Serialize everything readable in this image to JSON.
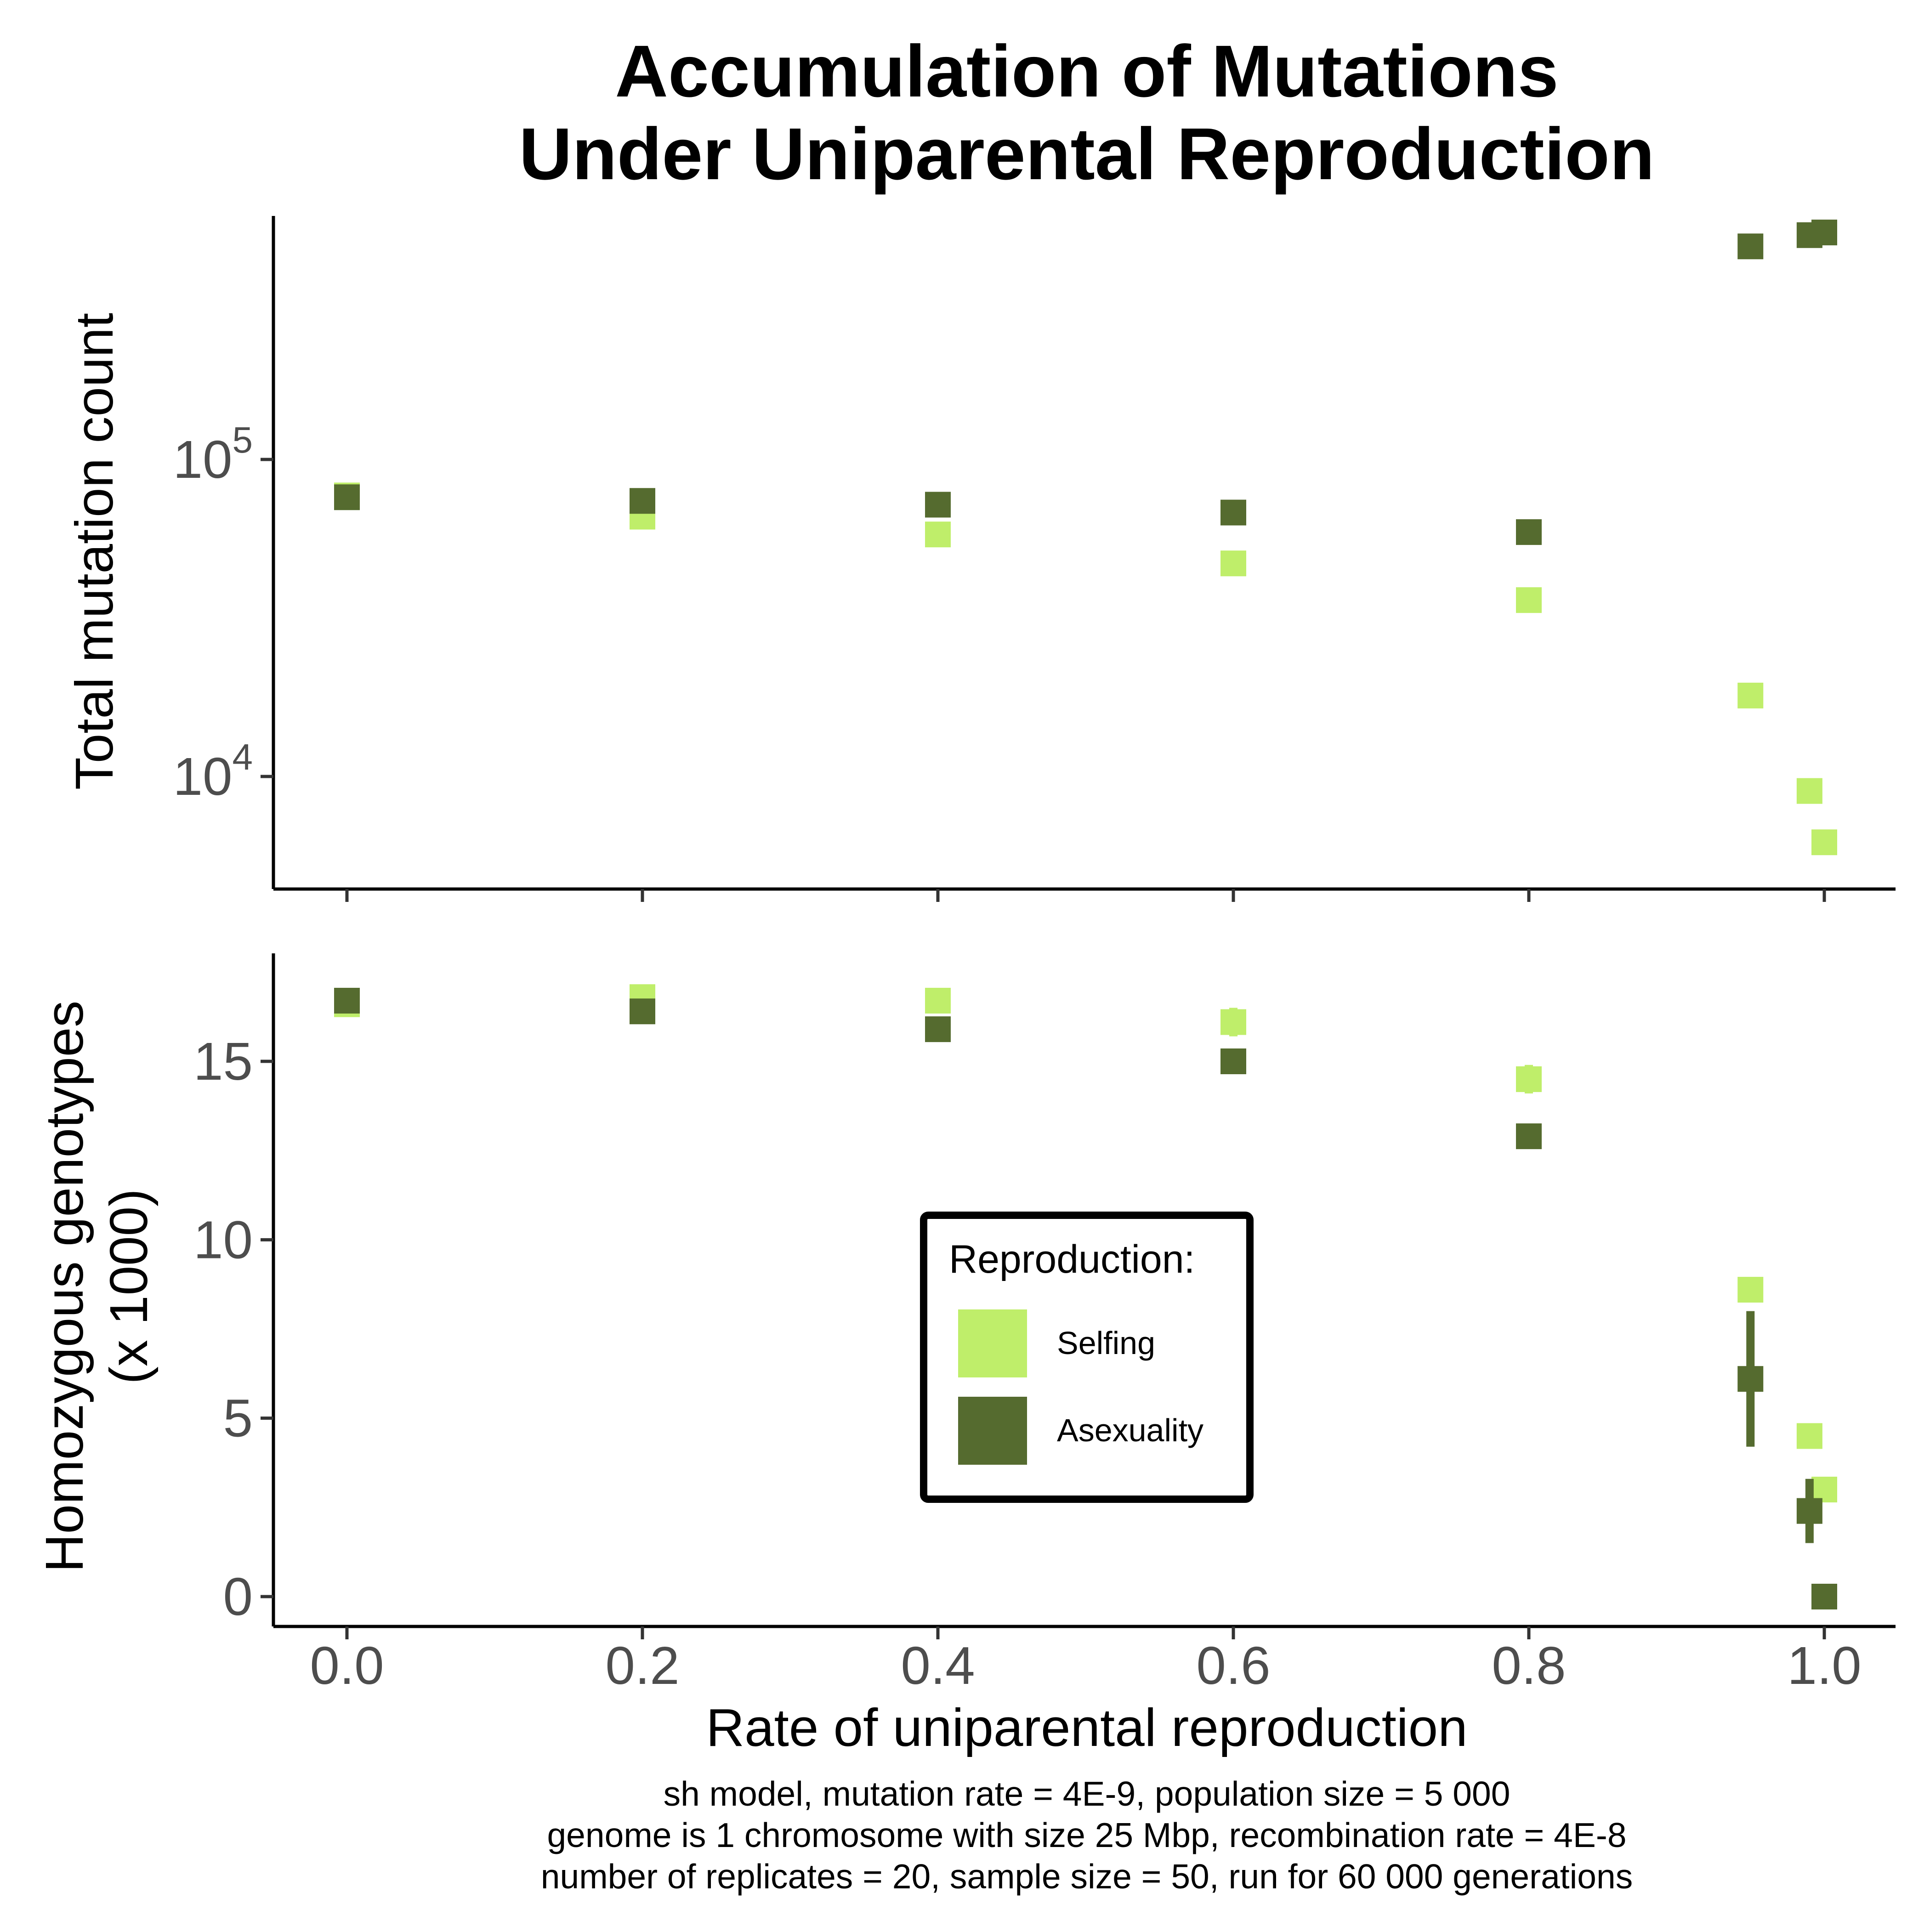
{
  "chart_data": {
    "type": "scatter",
    "title_lines": [
      "Accumulation of Mutations",
      "Under Uniparental Reproduction"
    ],
    "xlabel": "Rate of uniparental reproduction",
    "x_ticks": [
      "0.0",
      "0.2",
      "0.4",
      "0.6",
      "0.8",
      "1.0"
    ],
    "caption_lines": [
      "sh model, mutation rate = 4E-9, population size = 5 000",
      "genome is 1 chromosome with size 25 Mbp, recombination rate = 4E-8",
      "number of replicates = 20, sample size = 50, run for 60 000 generations"
    ],
    "legend": {
      "title": "Reproduction:",
      "items": [
        {
          "label": "Selfing",
          "color": "#bfee6a"
        },
        {
          "label": "Asexuality",
          "color": "#556b2f"
        }
      ]
    },
    "panels": [
      {
        "ylabel_lines": [
          "Total mutation count"
        ],
        "yscale": "log10",
        "ylim": [
          5000,
          600000
        ],
        "y_ticks": [
          {
            "value": 100000,
            "base": "10",
            "exp": "5"
          },
          {
            "value": 10000,
            "base": "10",
            "exp": "4"
          }
        ],
        "series": [
          {
            "name": "Selfing",
            "color": "#bfee6a",
            "points": [
              {
                "x": 0.0,
                "y": 77000
              },
              {
                "x": 0.2,
                "y": 66000
              },
              {
                "x": 0.4,
                "y": 58000
              },
              {
                "x": 0.6,
                "y": 47000
              },
              {
                "x": 0.8,
                "y": 36000
              },
              {
                "x": 0.95,
                "y": 18000
              },
              {
                "x": 0.99,
                "y": 9000
              },
              {
                "x": 1.0,
                "y": 6200,
                "err": 400
              }
            ]
          },
          {
            "name": "Asexuality",
            "color": "#556b2f",
            "points": [
              {
                "x": 0.0,
                "y": 76000
              },
              {
                "x": 0.2,
                "y": 74000
              },
              {
                "x": 0.4,
                "y": 72000
              },
              {
                "x": 0.6,
                "y": 68000
              },
              {
                "x": 0.8,
                "y": 59000
              },
              {
                "x": 0.95,
                "y": 470000
              },
              {
                "x": 0.99,
                "y": 510000
              },
              {
                "x": 1.0,
                "y": 520000
              }
            ]
          }
        ]
      },
      {
        "ylabel_lines": [
          "Homozygous genotypes",
          "(x 1000)"
        ],
        "yscale": "linear",
        "ylim": [
          -0.8,
          18
        ],
        "y_ticks": [
          {
            "value": 0,
            "label": "0"
          },
          {
            "value": 5,
            "label": "5"
          },
          {
            "value": 10,
            "label": "10"
          },
          {
            "value": 15,
            "label": "15"
          }
        ],
        "series": [
          {
            "name": "Selfing",
            "color": "#bfee6a",
            "points": [
              {
                "x": 0.0,
                "y": 16.6
              },
              {
                "x": 0.2,
                "y": 16.8,
                "err": 0.2
              },
              {
                "x": 0.4,
                "y": 16.7,
                "err": 0.3
              },
              {
                "x": 0.6,
                "y": 16.1,
                "err": 0.4
              },
              {
                "x": 0.8,
                "y": 14.5,
                "err": 0.4
              },
              {
                "x": 0.95,
                "y": 8.6
              },
              {
                "x": 0.99,
                "y": 4.5
              },
              {
                "x": 1.0,
                "y": 3.0
              }
            ]
          },
          {
            "name": "Asexuality",
            "color": "#556b2f",
            "points": [
              {
                "x": 0.0,
                "y": 16.7
              },
              {
                "x": 0.2,
                "y": 16.4
              },
              {
                "x": 0.4,
                "y": 15.9
              },
              {
                "x": 0.6,
                "y": 15.0
              },
              {
                "x": 0.8,
                "y": 12.9
              },
              {
                "x": 0.95,
                "y": 6.1,
                "err": 1.9
              },
              {
                "x": 0.99,
                "y": 2.4,
                "err": 0.9
              },
              {
                "x": 1.0,
                "y": 0.0
              }
            ]
          }
        ]
      }
    ]
  }
}
